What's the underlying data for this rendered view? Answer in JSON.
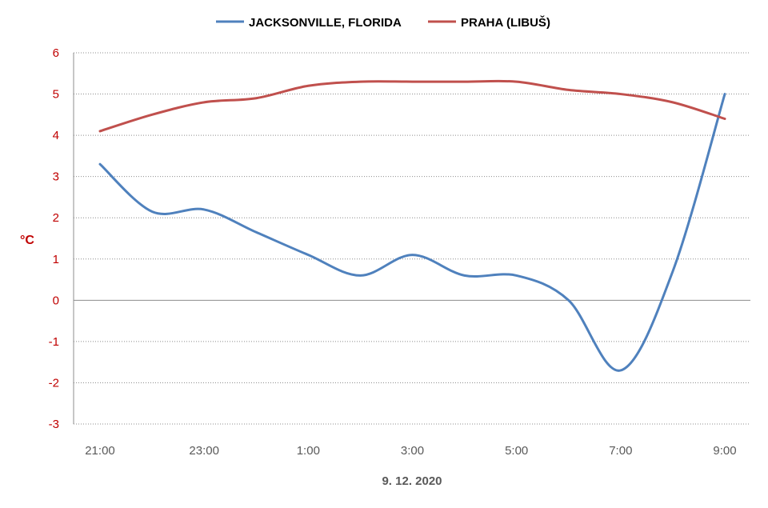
{
  "chart_data": {
    "type": "line",
    "x": [
      "21:00",
      "22:00",
      "23:00",
      "0:00",
      "1:00",
      "2:00",
      "3:00",
      "4:00",
      "5:00",
      "6:00",
      "7:00",
      "8:00",
      "9:00"
    ],
    "x_tick_labels": [
      "21:00",
      "23:00",
      "1:00",
      "3:00",
      "5:00",
      "7:00",
      "9:00"
    ],
    "xlabel": "9. 12. 2020",
    "ylabel": "°C",
    "ylim": [
      -3,
      6
    ],
    "y_ticks": [
      "6",
      "5",
      "4",
      "3",
      "2",
      "1",
      "0",
      "-1",
      "-2",
      "-3"
    ],
    "grid": true,
    "legend_position": "top",
    "series": [
      {
        "name": "JACKSONVILLE, FLORIDA",
        "color": "#4f81bd",
        "values": [
          3.3,
          2.15,
          2.2,
          1.65,
          1.1,
          0.6,
          1.1,
          0.6,
          0.6,
          0.0,
          -1.7,
          0.7,
          5.0
        ]
      },
      {
        "name": "PRAHA (LIBUŠ)",
        "color": "#c0504d",
        "values": [
          4.1,
          4.5,
          4.8,
          4.9,
          5.2,
          5.3,
          5.3,
          5.3,
          5.3,
          5.1,
          5.0,
          4.8,
          4.4
        ]
      }
    ]
  }
}
